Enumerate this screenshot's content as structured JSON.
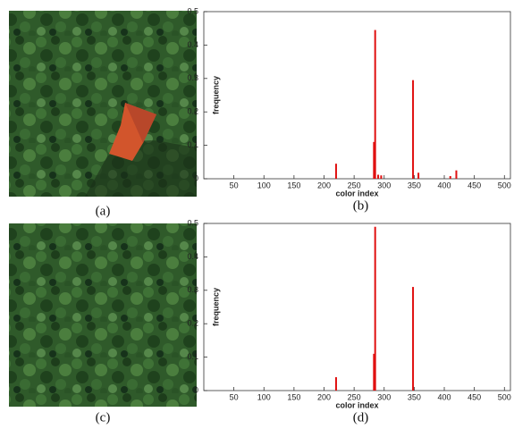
{
  "images": [
    {
      "caption": "(a)"
    },
    {
      "caption": "(c)"
    }
  ],
  "chart_data": [
    {
      "type": "bar",
      "caption": "(b)",
      "xlabel": "color index",
      "ylabel": "frequency",
      "color": "#e01010",
      "x": [
        220,
        283,
        285,
        290,
        295,
        348,
        357,
        410,
        420
      ],
      "values": [
        0.045,
        0.11,
        0.445,
        0.012,
        0.01,
        0.295,
        0.018,
        0.008,
        0.025
      ],
      "xlim": [
        0,
        510
      ],
      "ylim": [
        0,
        0.5
      ],
      "xticks": [
        50,
        100,
        150,
        200,
        250,
        300,
        350,
        400,
        450,
        500
      ],
      "yticks": [
        0,
        0.1,
        0.2,
        0.3,
        0.4,
        0.5
      ],
      "grid": false
    },
    {
      "type": "bar",
      "caption": "(d)",
      "xlabel": "color index",
      "ylabel": "frequency",
      "color": "#e01010",
      "x": [
        220,
        283,
        285,
        348
      ],
      "values": [
        0.04,
        0.11,
        0.49,
        0.31
      ],
      "xlim": [
        0,
        510
      ],
      "ylim": [
        0,
        0.5
      ],
      "xticks": [
        50,
        100,
        150,
        200,
        250,
        300,
        350,
        400,
        450,
        500
      ],
      "yticks": [
        0,
        0.1,
        0.2,
        0.3,
        0.4,
        0.5
      ],
      "grid": false
    }
  ]
}
